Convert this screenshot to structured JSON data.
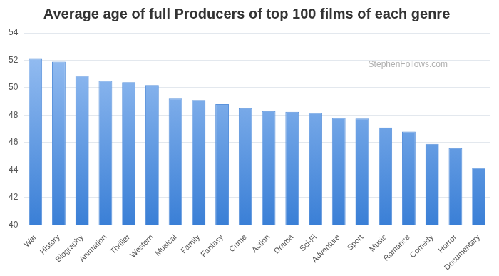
{
  "chart_data": {
    "type": "bar",
    "title": "Average age of full Producers of top 100 films of each genre",
    "annotation": "StephenFollows.com",
    "categories": [
      "War",
      "History",
      "Biography",
      "Animation",
      "Thriller",
      "Western",
      "Musical",
      "Family",
      "Fantasy",
      "Crime",
      "Action",
      "Drama",
      "Sci-Fi",
      "Adventure",
      "Sport",
      "Music",
      "Romance",
      "Comedy",
      "Horror",
      "Documentary"
    ],
    "values": [
      52.1,
      51.9,
      50.85,
      50.5,
      50.4,
      50.2,
      49.2,
      49.1,
      48.8,
      48.5,
      48.3,
      48.25,
      48.15,
      47.8,
      47.75,
      47.1,
      46.8,
      45.9,
      45.6,
      44.15
    ],
    "color": "#9fc4f4",
    "ylim": [
      40,
      54
    ],
    "yticks": [
      40,
      42,
      44,
      46,
      48,
      50,
      52,
      54
    ],
    "grid": true
  }
}
